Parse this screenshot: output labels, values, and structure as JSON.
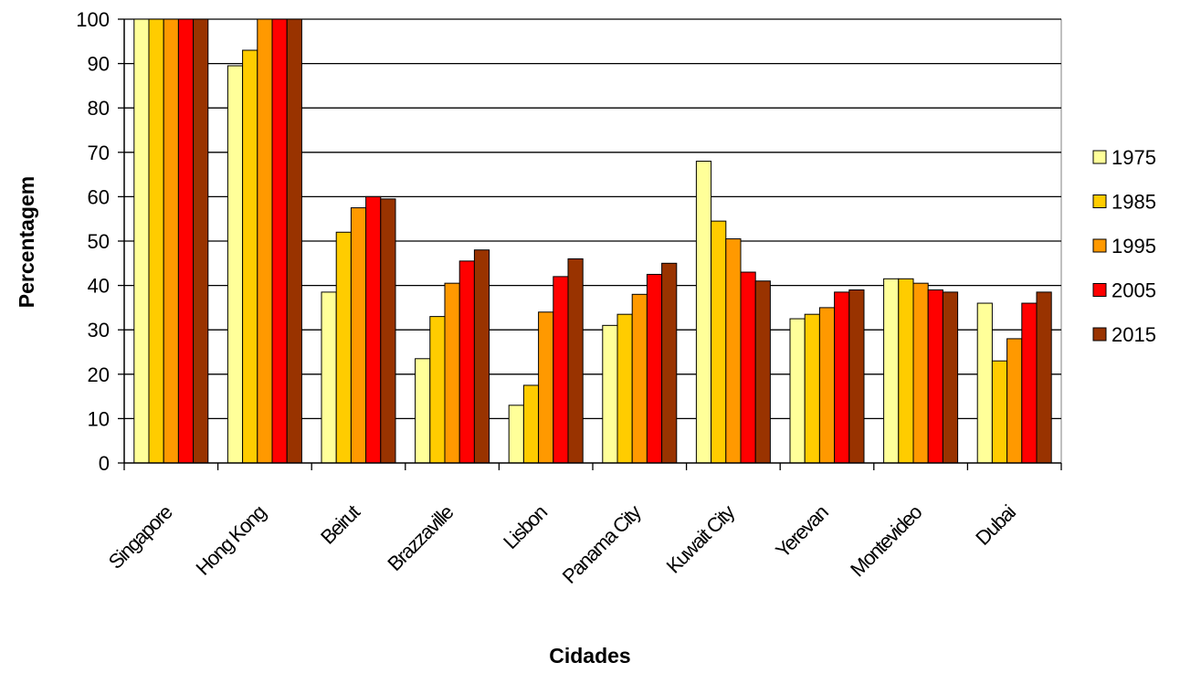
{
  "chart_data": {
    "type": "bar",
    "title": "",
    "xlabel": "Cidades",
    "ylabel": "Percentagem",
    "ylim": [
      0,
      100
    ],
    "yticks": [
      0,
      10,
      20,
      30,
      40,
      50,
      60,
      70,
      80,
      90,
      100
    ],
    "grid": true,
    "legend_position": "right",
    "categories": [
      "Singapore",
      "Hong Kong",
      "Beirut",
      "Brazzaville",
      "Lisbon",
      "Panama City",
      "Kuwait City",
      "Yerevan",
      "Montevideo",
      "Dubai"
    ],
    "series": [
      {
        "name": "1975",
        "color": "#FFFF99",
        "values": [
          100,
          89.5,
          38.5,
          23.5,
          13,
          31,
          68,
          32.5,
          41.5,
          36
        ]
      },
      {
        "name": "1985",
        "color": "#FFCC00",
        "values": [
          100,
          93,
          52,
          33,
          17.5,
          33.5,
          54.5,
          33.5,
          41.5,
          23
        ]
      },
      {
        "name": "1995",
        "color": "#FF9900",
        "values": [
          100,
          100,
          57.5,
          40.5,
          34,
          38,
          50.5,
          35,
          40.5,
          28
        ]
      },
      {
        "name": "2005",
        "color": "#FF0000",
        "values": [
          100,
          100,
          60,
          45.5,
          42,
          42.5,
          43,
          38.5,
          39,
          36
        ]
      },
      {
        "name": "2015",
        "color": "#993300",
        "values": [
          100,
          100,
          59.5,
          48,
          46,
          45,
          41,
          39,
          38.5,
          38.5
        ]
      }
    ]
  }
}
